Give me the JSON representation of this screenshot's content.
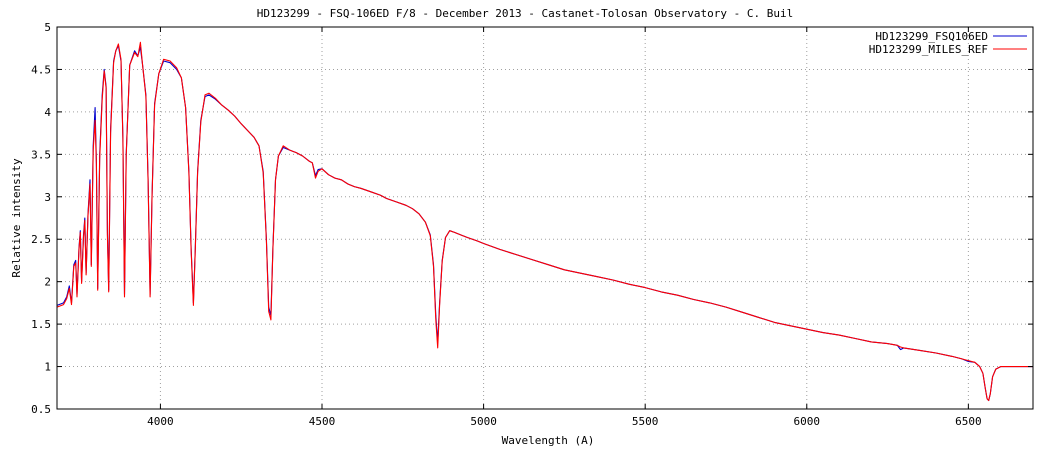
{
  "chart_data": {
    "type": "line",
    "title": "HD123299 - FSQ-106ED F/8 - December 2013 - Castanet-Tolosan Observatory - C. Buil",
    "xlabel": "Wavelength (A)",
    "ylabel": "Relative intensity",
    "xlim": [
      3680,
      6700
    ],
    "ylim": [
      0.5,
      5
    ],
    "xticks": [
      4000,
      4500,
      5000,
      5500,
      6000,
      6500
    ],
    "yticks": [
      0.5,
      1,
      1.5,
      2,
      2.5,
      3,
      3.5,
      4,
      4.5,
      5
    ],
    "grid": true,
    "legend_position": "top-right",
    "series": [
      {
        "name": "HD123299_FSQ106ED",
        "color": "#0000cc",
        "points": [
          [
            3680,
            1.72
          ],
          [
            3700,
            1.75
          ],
          [
            3710,
            1.82
          ],
          [
            3718,
            1.95
          ],
          [
            3725,
            1.75
          ],
          [
            3732,
            2.2
          ],
          [
            3738,
            2.25
          ],
          [
            3742,
            1.85
          ],
          [
            3748,
            2.4
          ],
          [
            3752,
            2.6
          ],
          [
            3756,
            2.0
          ],
          [
            3762,
            2.55
          ],
          [
            3766,
            2.75
          ],
          [
            3770,
            2.1
          ],
          [
            3776,
            2.8
          ],
          [
            3782,
            3.2
          ],
          [
            3786,
            2.2
          ],
          [
            3792,
            3.6
          ],
          [
            3798,
            4.05
          ],
          [
            3802,
            3.4
          ],
          [
            3806,
            1.92
          ],
          [
            3812,
            3.5
          ],
          [
            3820,
            4.2
          ],
          [
            3826,
            4.5
          ],
          [
            3832,
            4.3
          ],
          [
            3836,
            2.6
          ],
          [
            3840,
            1.9
          ],
          [
            3846,
            3.8
          ],
          [
            3855,
            4.6
          ],
          [
            3862,
            4.72
          ],
          [
            3870,
            4.78
          ],
          [
            3878,
            4.6
          ],
          [
            3884,
            3.7
          ],
          [
            3889,
            1.85
          ],
          [
            3894,
            3.5
          ],
          [
            3905,
            4.55
          ],
          [
            3920,
            4.72
          ],
          [
            3930,
            4.66
          ],
          [
            3938,
            4.76
          ],
          [
            3945,
            4.55
          ],
          [
            3955,
            4.2
          ],
          [
            3962,
            3.2
          ],
          [
            3968,
            1.85
          ],
          [
            3974,
            3.0
          ],
          [
            3982,
            4.1
          ],
          [
            3995,
            4.45
          ],
          [
            4010,
            4.6
          ],
          [
            4030,
            4.58
          ],
          [
            4050,
            4.5
          ],
          [
            4065,
            4.4
          ],
          [
            4078,
            4.05
          ],
          [
            4088,
            3.3
          ],
          [
            4095,
            2.4
          ],
          [
            4102,
            1.75
          ],
          [
            4108,
            2.4
          ],
          [
            4115,
            3.3
          ],
          [
            4125,
            3.9
          ],
          [
            4138,
            4.18
          ],
          [
            4150,
            4.2
          ],
          [
            4170,
            4.15
          ],
          [
            4190,
            4.08
          ],
          [
            4210,
            4.02
          ],
          [
            4230,
            3.95
          ],
          [
            4250,
            3.86
          ],
          [
            4270,
            3.78
          ],
          [
            4290,
            3.7
          ],
          [
            4305,
            3.6
          ],
          [
            4318,
            3.3
          ],
          [
            4328,
            2.5
          ],
          [
            4335,
            1.7
          ],
          [
            4342,
            1.6
          ],
          [
            4348,
            2.4
          ],
          [
            4356,
            3.2
          ],
          [
            4365,
            3.48
          ],
          [
            4380,
            3.58
          ],
          [
            4400,
            3.55
          ],
          [
            4420,
            3.52
          ],
          [
            4440,
            3.48
          ],
          [
            4460,
            3.42
          ],
          [
            4470,
            3.4
          ],
          [
            4480,
            3.25
          ],
          [
            4488,
            3.32
          ],
          [
            4500,
            3.33
          ],
          [
            4520,
            3.26
          ],
          [
            4540,
            3.22
          ],
          [
            4560,
            3.2
          ],
          [
            4580,
            3.15
          ],
          [
            4600,
            3.12
          ],
          [
            4620,
            3.1
          ],
          [
            4650,
            3.06
          ],
          [
            4680,
            3.02
          ],
          [
            4700,
            2.98
          ],
          [
            4730,
            2.94
          ],
          [
            4760,
            2.9
          ],
          [
            4780,
            2.86
          ],
          [
            4800,
            2.8
          ],
          [
            4820,
            2.7
          ],
          [
            4835,
            2.55
          ],
          [
            4845,
            2.2
          ],
          [
            4852,
            1.6
          ],
          [
            4858,
            1.28
          ],
          [
            4864,
            1.75
          ],
          [
            4872,
            2.25
          ],
          [
            4882,
            2.52
          ],
          [
            4895,
            2.6
          ],
          [
            4910,
            2.58
          ],
          [
            4930,
            2.55
          ],
          [
            4950,
            2.52
          ],
          [
            4980,
            2.48
          ],
          [
            5000,
            2.45
          ],
          [
            5050,
            2.38
          ],
          [
            5100,
            2.32
          ],
          [
            5150,
            2.26
          ],
          [
            5200,
            2.2
          ],
          [
            5250,
            2.14
          ],
          [
            5300,
            2.1
          ],
          [
            5350,
            2.06
          ],
          [
            5400,
            2.02
          ],
          [
            5450,
            1.97
          ],
          [
            5500,
            1.93
          ],
          [
            5550,
            1.88
          ],
          [
            5600,
            1.84
          ],
          [
            5650,
            1.79
          ],
          [
            5700,
            1.75
          ],
          [
            5750,
            1.7
          ],
          [
            5800,
            1.64
          ],
          [
            5850,
            1.58
          ],
          [
            5900,
            1.52
          ],
          [
            5950,
            1.48
          ],
          [
            6000,
            1.44
          ],
          [
            6050,
            1.4
          ],
          [
            6100,
            1.37
          ],
          [
            6150,
            1.33
          ],
          [
            6200,
            1.29
          ],
          [
            6250,
            1.27
          ],
          [
            6280,
            1.25
          ],
          [
            6290,
            1.2
          ],
          [
            6300,
            1.22
          ],
          [
            6350,
            1.19
          ],
          [
            6400,
            1.16
          ],
          [
            6450,
            1.12
          ],
          [
            6480,
            1.09
          ],
          [
            6500,
            1.06
          ],
          [
            6520,
            1.05
          ],
          [
            6535,
            1.0
          ],
          [
            6545,
            0.92
          ],
          [
            6552,
            0.75
          ],
          [
            6558,
            0.62
          ],
          [
            6563,
            0.6
          ],
          [
            6568,
            0.68
          ],
          [
            6575,
            0.88
          ],
          [
            6585,
            0.97
          ],
          [
            6600,
            1.0
          ],
          [
            6650,
            1.0
          ],
          [
            6700,
            1.0
          ]
        ]
      },
      {
        "name": "HD123299_MILES_REF",
        "color": "#ff0000",
        "points": [
          [
            3680,
            1.7
          ],
          [
            3700,
            1.73
          ],
          [
            3710,
            1.8
          ],
          [
            3718,
            1.92
          ],
          [
            3725,
            1.73
          ],
          [
            3732,
            2.18
          ],
          [
            3738,
            2.22
          ],
          [
            3742,
            1.82
          ],
          [
            3748,
            2.38
          ],
          [
            3752,
            2.58
          ],
          [
            3756,
            1.98
          ],
          [
            3762,
            2.52
          ],
          [
            3766,
            2.72
          ],
          [
            3770,
            2.08
          ],
          [
            3776,
            2.78
          ],
          [
            3782,
            3.15
          ],
          [
            3786,
            2.18
          ],
          [
            3792,
            3.55
          ],
          [
            3798,
            3.9
          ],
          [
            3802,
            3.38
          ],
          [
            3806,
            1.9
          ],
          [
            3812,
            3.45
          ],
          [
            3820,
            4.15
          ],
          [
            3826,
            4.48
          ],
          [
            3832,
            4.28
          ],
          [
            3836,
            2.55
          ],
          [
            3840,
            1.88
          ],
          [
            3846,
            3.75
          ],
          [
            3855,
            4.58
          ],
          [
            3862,
            4.72
          ],
          [
            3870,
            4.8
          ],
          [
            3878,
            4.62
          ],
          [
            3884,
            3.68
          ],
          [
            3889,
            1.82
          ],
          [
            3894,
            3.48
          ],
          [
            3905,
            4.55
          ],
          [
            3920,
            4.7
          ],
          [
            3930,
            4.65
          ],
          [
            3938,
            4.82
          ],
          [
            3945,
            4.55
          ],
          [
            3955,
            4.18
          ],
          [
            3962,
            3.18
          ],
          [
            3968,
            1.82
          ],
          [
            3974,
            2.98
          ],
          [
            3982,
            4.08
          ],
          [
            3995,
            4.45
          ],
          [
            4010,
            4.62
          ],
          [
            4030,
            4.6
          ],
          [
            4050,
            4.52
          ],
          [
            4065,
            4.4
          ],
          [
            4078,
            4.05
          ],
          [
            4088,
            3.28
          ],
          [
            4095,
            2.38
          ],
          [
            4102,
            1.72
          ],
          [
            4108,
            2.38
          ],
          [
            4115,
            3.28
          ],
          [
            4125,
            3.88
          ],
          [
            4138,
            4.2
          ],
          [
            4150,
            4.22
          ],
          [
            4170,
            4.16
          ],
          [
            4190,
            4.08
          ],
          [
            4210,
            4.02
          ],
          [
            4230,
            3.95
          ],
          [
            4250,
            3.86
          ],
          [
            4270,
            3.78
          ],
          [
            4290,
            3.7
          ],
          [
            4305,
            3.6
          ],
          [
            4318,
            3.28
          ],
          [
            4328,
            2.48
          ],
          [
            4335,
            1.65
          ],
          [
            4342,
            1.55
          ],
          [
            4348,
            2.38
          ],
          [
            4356,
            3.2
          ],
          [
            4365,
            3.48
          ],
          [
            4380,
            3.6
          ],
          [
            4400,
            3.55
          ],
          [
            4420,
            3.52
          ],
          [
            4440,
            3.48
          ],
          [
            4460,
            3.42
          ],
          [
            4470,
            3.4
          ],
          [
            4480,
            3.22
          ],
          [
            4488,
            3.3
          ],
          [
            4500,
            3.33
          ],
          [
            4520,
            3.26
          ],
          [
            4540,
            3.22
          ],
          [
            4560,
            3.2
          ],
          [
            4580,
            3.15
          ],
          [
            4600,
            3.12
          ],
          [
            4620,
            3.1
          ],
          [
            4650,
            3.06
          ],
          [
            4680,
            3.02
          ],
          [
            4700,
            2.98
          ],
          [
            4730,
            2.94
          ],
          [
            4760,
            2.9
          ],
          [
            4780,
            2.86
          ],
          [
            4800,
            2.8
          ],
          [
            4820,
            2.7
          ],
          [
            4835,
            2.54
          ],
          [
            4845,
            2.18
          ],
          [
            4852,
            1.55
          ],
          [
            4858,
            1.22
          ],
          [
            4864,
            1.72
          ],
          [
            4872,
            2.24
          ],
          [
            4882,
            2.52
          ],
          [
            4895,
            2.6
          ],
          [
            4910,
            2.58
          ],
          [
            4930,
            2.55
          ],
          [
            4950,
            2.52
          ],
          [
            4980,
            2.48
          ],
          [
            5000,
            2.45
          ],
          [
            5050,
            2.38
          ],
          [
            5100,
            2.32
          ],
          [
            5150,
            2.26
          ],
          [
            5200,
            2.2
          ],
          [
            5250,
            2.14
          ],
          [
            5300,
            2.1
          ],
          [
            5350,
            2.06
          ],
          [
            5400,
            2.02
          ],
          [
            5450,
            1.97
          ],
          [
            5500,
            1.93
          ],
          [
            5550,
            1.88
          ],
          [
            5600,
            1.84
          ],
          [
            5650,
            1.79
          ],
          [
            5700,
            1.75
          ],
          [
            5750,
            1.7
          ],
          [
            5800,
            1.64
          ],
          [
            5850,
            1.58
          ],
          [
            5900,
            1.52
          ],
          [
            5950,
            1.48
          ],
          [
            6000,
            1.44
          ],
          [
            6050,
            1.4
          ],
          [
            6100,
            1.37
          ],
          [
            6150,
            1.33
          ],
          [
            6200,
            1.29
          ],
          [
            6250,
            1.27
          ],
          [
            6280,
            1.25
          ],
          [
            6290,
            1.23
          ],
          [
            6300,
            1.22
          ],
          [
            6350,
            1.19
          ],
          [
            6400,
            1.16
          ],
          [
            6450,
            1.12
          ],
          [
            6480,
            1.09
          ],
          [
            6500,
            1.07
          ],
          [
            6520,
            1.05
          ],
          [
            6535,
            1.0
          ],
          [
            6545,
            0.92
          ],
          [
            6552,
            0.75
          ],
          [
            6558,
            0.62
          ],
          [
            6563,
            0.6
          ],
          [
            6568,
            0.68
          ],
          [
            6575,
            0.88
          ],
          [
            6585,
            0.97
          ],
          [
            6600,
            1.0
          ],
          [
            6650,
            1.0
          ],
          [
            6700,
            1.0
          ]
        ]
      }
    ]
  }
}
